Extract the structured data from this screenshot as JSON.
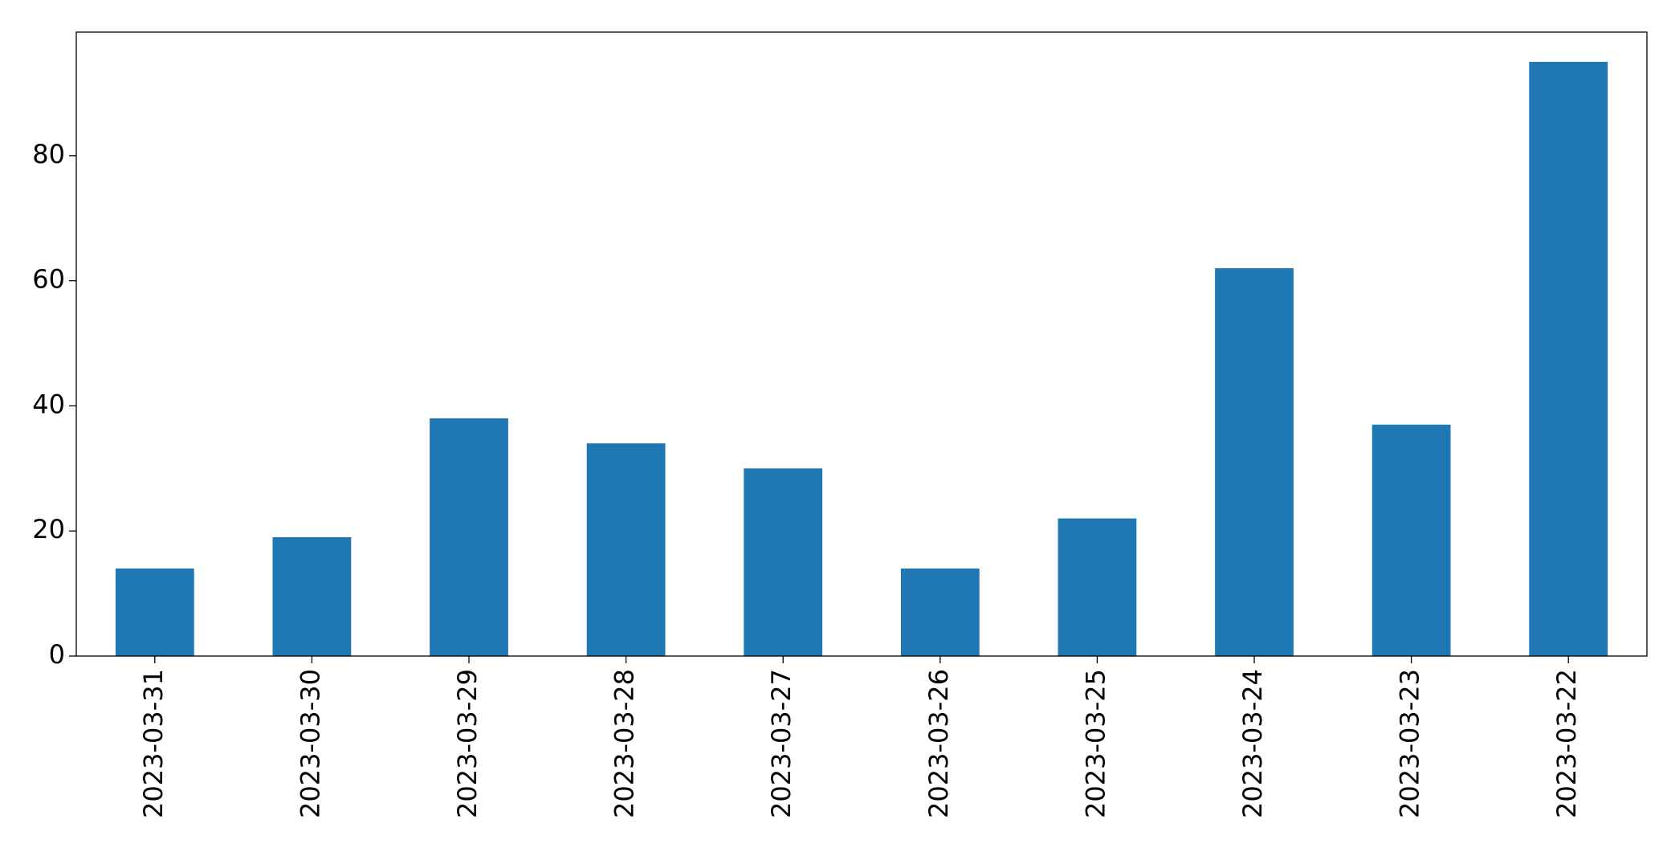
{
  "chart_data": {
    "type": "bar",
    "categories": [
      "2023-03-31",
      "2023-03-30",
      "2023-03-29",
      "2023-03-28",
      "2023-03-27",
      "2023-03-26",
      "2023-03-25",
      "2023-03-24",
      "2023-03-23",
      "2023-03-22"
    ],
    "values": [
      14,
      19,
      38,
      34,
      30,
      14,
      22,
      62,
      37,
      95
    ],
    "color": "#1f77b4",
    "ylim": [
      0,
      99.75
    ],
    "yticks": [
      0,
      20,
      40,
      60,
      80
    ],
    "grid": false
  }
}
